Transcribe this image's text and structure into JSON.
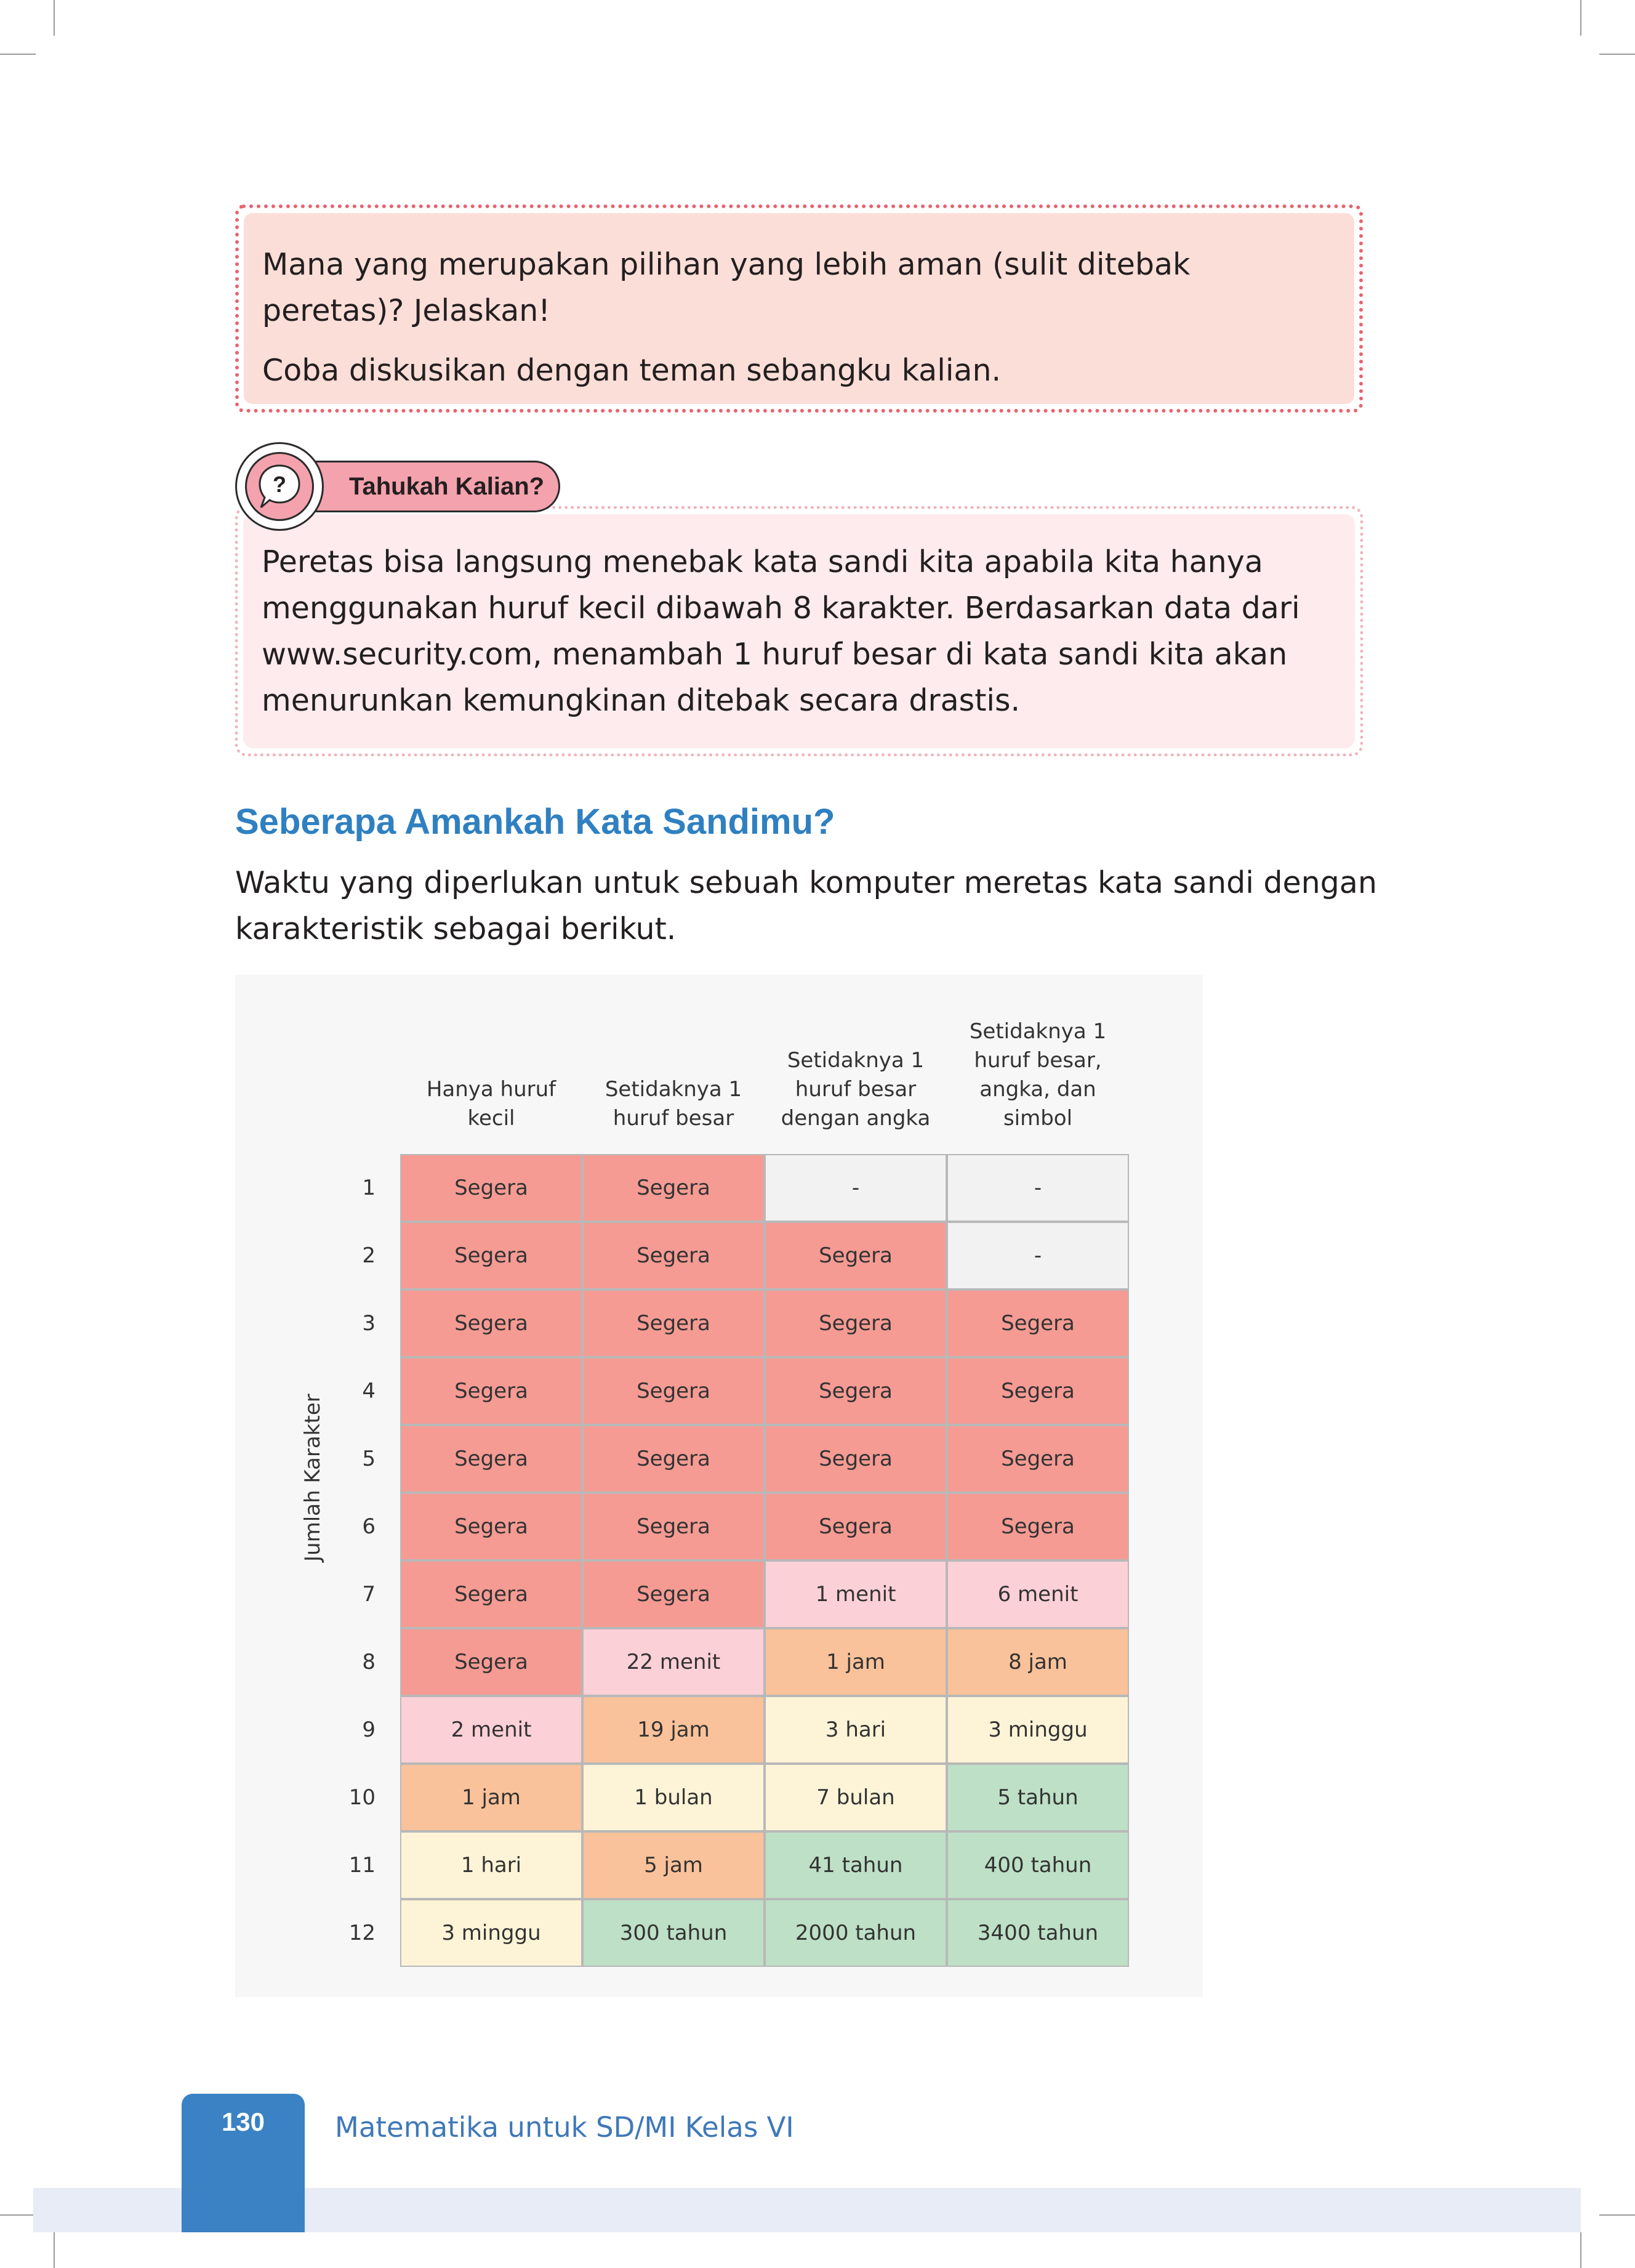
{
  "question_box": {
    "line1": "Mana yang merupakan pilihan yang lebih aman (sulit ditebak peretas)? Jelaskan!",
    "line2": "Coba diskusikan dengan teman sebangku kalian."
  },
  "did_you_know": {
    "icon": "question-bubble-icon",
    "label": "Tahukah Kalian?",
    "text": "Peretas bisa langsung menebak kata sandi kita apabila kita hanya menggunakan huruf kecil dibawah 8 karakter. Berdasarkan data dari www.security.com, menambah 1 huruf besar di kata sandi kita akan menurunkan kemungkinan ditebak secara drastis."
  },
  "section": {
    "title": "Seberapa Amankah Kata Sandimu?",
    "intro": "Waktu yang diperlukan untuk sebuah komputer meretas kata sandi dengan karakteristik sebagai berikut."
  },
  "chart_data": {
    "type": "table",
    "ylabel": "Jumlah Karakter",
    "columns": [
      "Hanya huruf kecil",
      "Setidaknya 1 huruf besar",
      "Setidaknya 1 huruf besar dengan angka",
      "Setidaknya 1 huruf besar, angka, dan simbol"
    ],
    "rows": [
      {
        "label": "1",
        "values": [
          "Segera",
          "Segera",
          "-",
          "-"
        ]
      },
      {
        "label": "2",
        "values": [
          "Segera",
          "Segera",
          "Segera",
          "-"
        ]
      },
      {
        "label": "3",
        "values": [
          "Segera",
          "Segera",
          "Segera",
          "Segera"
        ]
      },
      {
        "label": "4",
        "values": [
          "Segera",
          "Segera",
          "Segera",
          "Segera"
        ]
      },
      {
        "label": "5",
        "values": [
          "Segera",
          "Segera",
          "Segera",
          "Segera"
        ]
      },
      {
        "label": "6",
        "values": [
          "Segera",
          "Segera",
          "Segera",
          "Segera"
        ]
      },
      {
        "label": "7",
        "values": [
          "Segera",
          "Segera",
          "1 menit",
          "6 menit"
        ]
      },
      {
        "label": "8",
        "values": [
          "Segera",
          "22 menit",
          "1 jam",
          "8 jam"
        ]
      },
      {
        "label": "9",
        "values": [
          "2 menit",
          "19 jam",
          "3 hari",
          "3 minggu"
        ]
      },
      {
        "label": "10",
        "values": [
          "1 jam",
          "1 bulan",
          "7 bulan",
          "5 tahun"
        ]
      },
      {
        "label": "11",
        "values": [
          "1 hari",
          "5 jam",
          "41 tahun",
          "400 tahun"
        ]
      },
      {
        "label": "12",
        "values": [
          "3 minggu",
          "300 tahun",
          "2000 tahun",
          "3400 tahun"
        ]
      }
    ],
    "cell_colors": {
      "Segera": "#f59b93",
      "menit": "#fcd0d7",
      "jam": "#fac29a",
      "hari_bulan_minggu": "#fdf4d7",
      "tahun": "#bde0c6",
      "none": "#f2f2f2"
    },
    "cell_color_exceptions": {
      "11|1": "#bde0c6"
    }
  },
  "footer": {
    "page_number": "130",
    "book_title": "Matematika untuk SD/MI Kelas VI"
  },
  "colors": {
    "accent_blue": "#2f80c1",
    "question_box_bg": "#fcded8",
    "question_box_border": "#e8636f",
    "callout_bg": "#fdebed",
    "callout_tag": "#f4a2ad"
  }
}
